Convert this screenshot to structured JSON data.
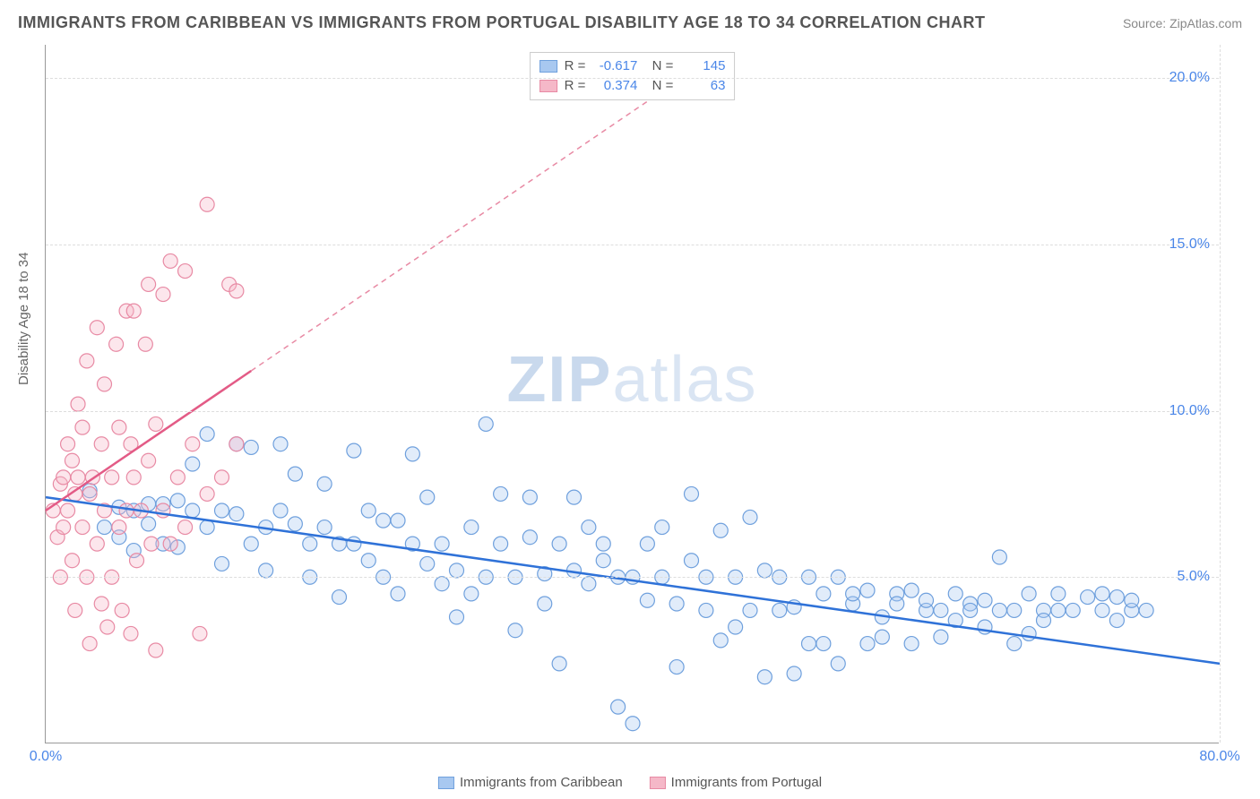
{
  "title": "IMMIGRANTS FROM CARIBBEAN VS IMMIGRANTS FROM PORTUGAL DISABILITY AGE 18 TO 34 CORRELATION CHART",
  "source": "Source: ZipAtlas.com",
  "ylabel": "Disability Age 18 to 34",
  "watermark_bold": "ZIP",
  "watermark_light": "atlas",
  "chart": {
    "type": "scatter",
    "xlim": [
      0,
      80
    ],
    "ylim": [
      0,
      21
    ],
    "xticks": [
      {
        "v": 0,
        "l": "0.0%"
      },
      {
        "v": 80,
        "l": "80.0%"
      }
    ],
    "yticks": [
      {
        "v": 5,
        "l": "5.0%"
      },
      {
        "v": 10,
        "l": "10.0%"
      },
      {
        "v": 15,
        "l": "15.0%"
      },
      {
        "v": 20,
        "l": "20.0%"
      }
    ],
    "grid_color": "#dddddd",
    "background_color": "#ffffff",
    "marker_radius": 8,
    "series": [
      {
        "name": "Immigrants from Caribbean",
        "color_fill": "#a8c8f0",
        "color_stroke": "#6fa0dd",
        "R": "-0.617",
        "N": "145",
        "trend": {
          "x1": 0,
          "y1": 7.4,
          "x2": 80,
          "y2": 2.4,
          "color": "#2f72d8"
        },
        "points": [
          [
            3,
            7.6
          ],
          [
            4,
            6.5
          ],
          [
            5,
            7.1
          ],
          [
            5,
            6.2
          ],
          [
            6,
            7.0
          ],
          [
            6,
            5.8
          ],
          [
            7,
            7.2
          ],
          [
            7,
            6.6
          ],
          [
            8,
            7.2
          ],
          [
            8,
            6.0
          ],
          [
            9,
            7.3
          ],
          [
            9,
            5.9
          ],
          [
            10,
            7.0
          ],
          [
            10,
            8.4
          ],
          [
            11,
            6.5
          ],
          [
            11,
            9.3
          ],
          [
            12,
            7.0
          ],
          [
            12,
            5.4
          ],
          [
            13,
            6.9
          ],
          [
            13,
            9.0
          ],
          [
            14,
            6.0
          ],
          [
            14,
            8.9
          ],
          [
            15,
            6.5
          ],
          [
            15,
            5.2
          ],
          [
            16,
            7.0
          ],
          [
            16,
            9.0
          ],
          [
            17,
            6.6
          ],
          [
            17,
            8.1
          ],
          [
            18,
            6.0
          ],
          [
            18,
            5.0
          ],
          [
            19,
            6.5
          ],
          [
            19,
            7.8
          ],
          [
            20,
            6.0
          ],
          [
            20,
            4.4
          ],
          [
            21,
            8.8
          ],
          [
            21,
            6.0
          ],
          [
            22,
            5.5
          ],
          [
            22,
            7.0
          ],
          [
            23,
            5.0
          ],
          [
            23,
            6.7
          ],
          [
            24,
            6.7
          ],
          [
            24,
            4.5
          ],
          [
            25,
            6.0
          ],
          [
            25,
            8.7
          ],
          [
            26,
            5.4
          ],
          [
            26,
            7.4
          ],
          [
            27,
            4.8
          ],
          [
            27,
            6.0
          ],
          [
            28,
            5.2
          ],
          [
            28,
            3.8
          ],
          [
            29,
            6.5
          ],
          [
            29,
            4.5
          ],
          [
            30,
            9.6
          ],
          [
            30,
            5.0
          ],
          [
            31,
            6.0
          ],
          [
            31,
            7.5
          ],
          [
            32,
            5.0
          ],
          [
            32,
            3.4
          ],
          [
            33,
            6.2
          ],
          [
            33,
            7.4
          ],
          [
            34,
            5.1
          ],
          [
            34,
            4.2
          ],
          [
            35,
            6.0
          ],
          [
            35,
            2.4
          ],
          [
            36,
            5.2
          ],
          [
            36,
            7.4
          ],
          [
            37,
            4.8
          ],
          [
            37,
            6.5
          ],
          [
            38,
            5.5
          ],
          [
            38,
            6.0
          ],
          [
            39,
            1.1
          ],
          [
            39,
            5.0
          ],
          [
            40,
            5.0
          ],
          [
            40,
            0.6
          ],
          [
            41,
            6.0
          ],
          [
            41,
            4.3
          ],
          [
            42,
            5.0
          ],
          [
            42,
            6.5
          ],
          [
            43,
            4.2
          ],
          [
            43,
            2.3
          ],
          [
            44,
            5.5
          ],
          [
            44,
            7.5
          ],
          [
            45,
            4.0
          ],
          [
            45,
            5.0
          ],
          [
            46,
            6.4
          ],
          [
            46,
            3.1
          ],
          [
            47,
            5.0
          ],
          [
            47,
            3.5
          ],
          [
            48,
            4.0
          ],
          [
            48,
            6.8
          ],
          [
            49,
            5.2
          ],
          [
            49,
            2.0
          ],
          [
            50,
            4.0
          ],
          [
            50,
            5.0
          ],
          [
            51,
            2.1
          ],
          [
            51,
            4.1
          ],
          [
            52,
            5.0
          ],
          [
            52,
            3.0
          ],
          [
            53,
            4.5
          ],
          [
            53,
            3.0
          ],
          [
            54,
            5.0
          ],
          [
            54,
            2.4
          ],
          [
            55,
            4.2
          ],
          [
            55,
            4.5
          ],
          [
            56,
            3.0
          ],
          [
            56,
            4.6
          ],
          [
            57,
            3.8
          ],
          [
            57,
            3.2
          ],
          [
            58,
            4.5
          ],
          [
            58,
            4.2
          ],
          [
            59,
            3.0
          ],
          [
            59,
            4.6
          ],
          [
            60,
            4.0
          ],
          [
            60,
            4.3
          ],
          [
            61,
            3.2
          ],
          [
            61,
            4.0
          ],
          [
            62,
            4.5
          ],
          [
            62,
            3.7
          ],
          [
            63,
            4.2
          ],
          [
            63,
            4.0
          ],
          [
            64,
            3.5
          ],
          [
            64,
            4.3
          ],
          [
            65,
            4.0
          ],
          [
            65,
            5.6
          ],
          [
            66,
            3.0
          ],
          [
            66,
            4.0
          ],
          [
            67,
            4.5
          ],
          [
            67,
            3.3
          ],
          [
            68,
            4.0
          ],
          [
            68,
            3.7
          ],
          [
            69,
            4.5
          ],
          [
            69,
            4.0
          ],
          [
            70,
            4.0
          ],
          [
            71,
            4.4
          ],
          [
            72,
            4.0
          ],
          [
            72,
            4.5
          ],
          [
            73,
            3.7
          ],
          [
            73,
            4.4
          ],
          [
            74,
            4.0
          ],
          [
            74,
            4.3
          ],
          [
            75,
            4.0
          ]
        ]
      },
      {
        "name": "Immigrants from Portugal",
        "color_fill": "#f5b8c8",
        "color_stroke": "#e88aa4",
        "R": "0.374",
        "N": "63",
        "trend_solid": {
          "x1": 0,
          "y1": 7.0,
          "x2": 14,
          "y2": 11.2,
          "color": "#e35b86"
        },
        "trend_dash": {
          "x1": 14,
          "y1": 11.2,
          "x2": 42,
          "y2": 19.6,
          "color": "#e88aa4"
        },
        "points": [
          [
            0.5,
            7.0
          ],
          [
            0.8,
            6.2
          ],
          [
            1.0,
            7.8
          ],
          [
            1.0,
            5.0
          ],
          [
            1.2,
            8.0
          ],
          [
            1.2,
            6.5
          ],
          [
            1.5,
            9.0
          ],
          [
            1.5,
            7.0
          ],
          [
            1.8,
            5.5
          ],
          [
            1.8,
            8.5
          ],
          [
            2.0,
            7.5
          ],
          [
            2.0,
            4.0
          ],
          [
            2.2,
            10.2
          ],
          [
            2.2,
            8.0
          ],
          [
            2.5,
            6.5
          ],
          [
            2.5,
            9.5
          ],
          [
            2.8,
            5.0
          ],
          [
            2.8,
            11.5
          ],
          [
            3.0,
            7.5
          ],
          [
            3.0,
            3.0
          ],
          [
            3.2,
            8.0
          ],
          [
            3.5,
            12.5
          ],
          [
            3.5,
            6.0
          ],
          [
            3.8,
            4.2
          ],
          [
            3.8,
            9.0
          ],
          [
            4.0,
            7.0
          ],
          [
            4.0,
            10.8
          ],
          [
            4.2,
            3.5
          ],
          [
            4.5,
            8.0
          ],
          [
            4.5,
            5.0
          ],
          [
            4.8,
            12.0
          ],
          [
            5.0,
            6.5
          ],
          [
            5.0,
            9.5
          ],
          [
            5.2,
            4.0
          ],
          [
            5.5,
            13.0
          ],
          [
            5.5,
            7.0
          ],
          [
            5.8,
            9.0
          ],
          [
            5.8,
            3.3
          ],
          [
            6.0,
            8.0
          ],
          [
            6.0,
            13.0
          ],
          [
            6.2,
            5.5
          ],
          [
            6.5,
            7.0
          ],
          [
            6.8,
            12.0
          ],
          [
            7.0,
            8.5
          ],
          [
            7.0,
            13.8
          ],
          [
            7.2,
            6.0
          ],
          [
            7.5,
            9.6
          ],
          [
            7.5,
            2.8
          ],
          [
            8.0,
            13.5
          ],
          [
            8.0,
            7.0
          ],
          [
            8.5,
            6.0
          ],
          [
            8.5,
            14.5
          ],
          [
            9.0,
            8.0
          ],
          [
            9.5,
            6.5
          ],
          [
            9.5,
            14.2
          ],
          [
            10.0,
            9.0
          ],
          [
            10.5,
            3.3
          ],
          [
            11.0,
            16.2
          ],
          [
            11.0,
            7.5
          ],
          [
            12.0,
            8.0
          ],
          [
            12.5,
            13.8
          ],
          [
            13.0,
            13.6
          ],
          [
            13.0,
            9.0
          ]
        ]
      }
    ]
  },
  "legend_bottom": [
    {
      "label": "Immigrants from Caribbean",
      "fill": "#a8c8f0",
      "stroke": "#6fa0dd"
    },
    {
      "label": "Immigrants from Portugal",
      "fill": "#f5b8c8",
      "stroke": "#e88aa4"
    }
  ]
}
